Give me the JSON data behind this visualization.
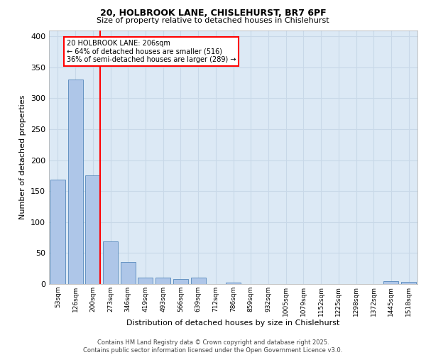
{
  "title_line1": "20, HOLBROOK LANE, CHISLEHURST, BR7 6PF",
  "title_line2": "Size of property relative to detached houses in Chislehurst",
  "xlabel": "Distribution of detached houses by size in Chislehurst",
  "ylabel": "Number of detached properties",
  "bar_labels": [
    "53sqm",
    "126sqm",
    "200sqm",
    "273sqm",
    "346sqm",
    "419sqm",
    "493sqm",
    "566sqm",
    "639sqm",
    "712sqm",
    "786sqm",
    "859sqm",
    "932sqm",
    "1005sqm",
    "1079sqm",
    "1152sqm",
    "1225sqm",
    "1298sqm",
    "1372sqm",
    "1445sqm",
    "1518sqm"
  ],
  "bar_values": [
    169,
    330,
    175,
    69,
    35,
    10,
    10,
    8,
    10,
    0,
    2,
    0,
    0,
    0,
    0,
    0,
    0,
    0,
    0,
    5,
    3
  ],
  "bar_color": "#aec6e8",
  "bar_edge_color": "#5588bb",
  "grid_color": "#c8d8e8",
  "background_color": "#dce9f5",
  "reference_line_color": "red",
  "annotation_text": "20 HOLBROOK LANE: 206sqm\n← 64% of detached houses are smaller (516)\n36% of semi-detached houses are larger (289) →",
  "annotation_box_color": "white",
  "annotation_box_edge": "red",
  "footer_text": "Contains HM Land Registry data © Crown copyright and database right 2025.\nContains public sector information licensed under the Open Government Licence v3.0.",
  "ylim": [
    0,
    410
  ],
  "yticks": [
    0,
    50,
    100,
    150,
    200,
    250,
    300,
    350,
    400
  ]
}
